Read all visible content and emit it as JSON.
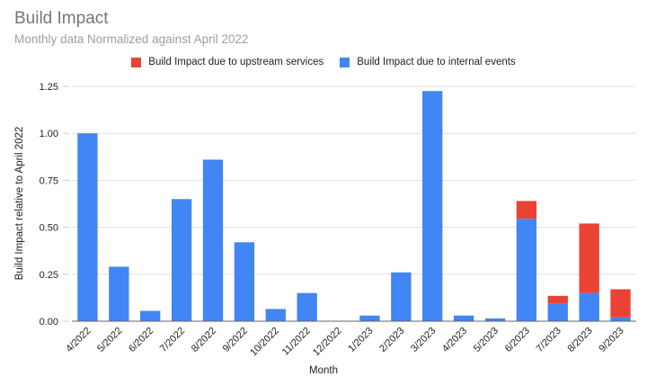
{
  "chart_data": {
    "type": "bar",
    "stacked": true,
    "title": "Build Impact",
    "subtitle": "Monthly data Normalized against April 2022",
    "xlabel": "Month",
    "ylabel": "Build Impact relative to April 2022",
    "ylim": [
      0,
      1.25
    ],
    "yticks": [
      "0.00",
      "0.25",
      "0.50",
      "0.75",
      "1.00",
      "1.25"
    ],
    "grid": true,
    "legend_position": "top",
    "categories": [
      "4/2022",
      "5/2022",
      "6/2022",
      "7/2022",
      "8/2022",
      "9/2022",
      "10/2022",
      "11/2022",
      "12/2022",
      "1/2023",
      "2/2023",
      "3/2023",
      "4/2023",
      "5/2023",
      "6/2023",
      "7/2023",
      "8/2023",
      "9/2023"
    ],
    "series": [
      {
        "name": "Build Impact due to internal events",
        "color": "#4285f4",
        "values": [
          1.0,
          0.29,
          0.055,
          0.65,
          0.86,
          0.42,
          0.065,
          0.15,
          0.0,
          0.03,
          0.26,
          1.225,
          0.03,
          0.015,
          0.545,
          0.095,
          0.15,
          0.02
        ]
      },
      {
        "name": "Build Impact due to upstream services",
        "color": "#ea4335",
        "values": [
          0,
          0,
          0,
          0,
          0,
          0,
          0,
          0,
          0,
          0,
          0,
          0,
          0,
          0,
          0.095,
          0.04,
          0.37,
          0.15
        ]
      }
    ]
  },
  "legend": {
    "items": [
      {
        "label": "Build Impact due to upstream services",
        "color": "#ea4335"
      },
      {
        "label": "Build Impact due to internal events",
        "color": "#4285f4"
      }
    ]
  }
}
